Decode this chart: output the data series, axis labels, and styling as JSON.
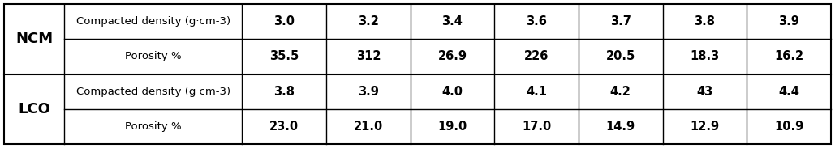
{
  "material_labels": [
    "NCM",
    "LCO"
  ],
  "row_headers": [
    "Compacted density (g·cm-3)",
    "Porosity %"
  ],
  "ncm_density": [
    "3.0",
    "3.2",
    "3.4",
    "3.6",
    "3.7",
    "3.8",
    "3.9"
  ],
  "ncm_porosity": [
    "35.5",
    "312",
    "26.9",
    "226",
    "20.5",
    "18.3",
    "16.2"
  ],
  "lco_density": [
    "3.8",
    "3.9",
    "4.0",
    "4.1",
    "4.2",
    "43",
    "4.4"
  ],
  "lco_porosity": [
    "23.0",
    "21.0",
    "19.0",
    "17.0",
    "14.9",
    "12.9",
    "10.9"
  ],
  "bg_color": "#ffffff",
  "border_color": "#000000",
  "font_size_data": 10.5,
  "font_size_label": 9.5,
  "font_size_material": 13
}
